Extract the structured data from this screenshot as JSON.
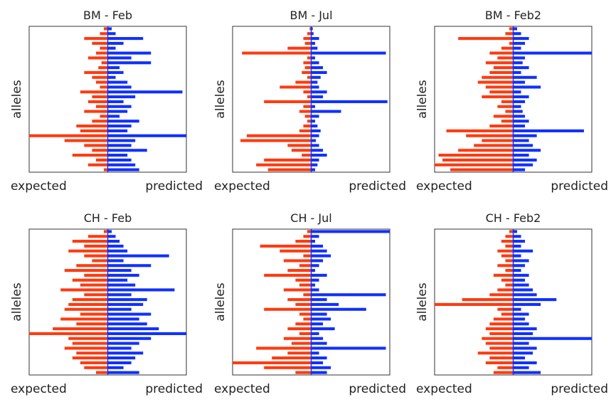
{
  "chart_data": [
    {
      "type": "bar",
      "title": "BM - Feb",
      "ylabel": "alleles",
      "xlim": [
        -1,
        1
      ],
      "series": [
        {
          "name": "expected",
          "color": "#ff3a10",
          "values": [
            -0.05,
            -0.1,
            -0.3,
            -0.2,
            -0.1,
            -0.15,
            -0.25,
            -0.08,
            -0.12,
            -0.3,
            -0.2,
            -0.15,
            -0.1,
            -0.35,
            -0.2,
            -0.25,
            -0.15,
            -0.3,
            -0.1,
            -0.2,
            -0.4,
            -0.35,
            -1.0,
            -0.55,
            -0.3,
            -0.2,
            -0.45,
            -0.15,
            -0.25,
            -0.05
          ]
        },
        {
          "name": "predicted",
          "color": "#1030ff",
          "values": [
            0.05,
            0.1,
            0.45,
            0.2,
            0.1,
            0.55,
            0.3,
            0.55,
            0.15,
            0.2,
            0.1,
            0.25,
            0.3,
            0.95,
            0.35,
            0.2,
            0.3,
            0.25,
            0.15,
            0.4,
            0.3,
            0.25,
            1.0,
            0.35,
            0.3,
            0.5,
            0.25,
            0.3,
            0.35,
            0.4
          ]
        }
      ]
    },
    {
      "type": "bar",
      "title": "BM - Jul",
      "ylabel": "alleles",
      "xlim": [
        -1,
        1
      ],
      "series": [
        {
          "name": "expected",
          "color": "#ff3a10",
          "values": [
            -0.02,
            -0.05,
            -0.1,
            -0.08,
            -0.3,
            -0.88,
            -0.05,
            -0.1,
            -0.08,
            -0.12,
            -0.05,
            -0.2,
            -0.4,
            -0.1,
            -0.05,
            -0.6,
            -0.1,
            -0.15,
            -0.08,
            -0.05,
            -0.1,
            -0.15,
            -0.82,
            -0.9,
            -0.3,
            -0.25,
            -0.12,
            -0.6,
            -0.7,
            -0.55
          ]
        },
        {
          "name": "predicted",
          "color": "#1030ff",
          "values": [
            0.02,
            0.03,
            0.1,
            0.05,
            0.08,
            0.95,
            0.05,
            0.1,
            0.15,
            0.2,
            0.12,
            0.08,
            0.1,
            0.2,
            0.15,
            0.97,
            0.05,
            0.38,
            0.1,
            0.05,
            0.08,
            0.12,
            0.1,
            0.06,
            0.1,
            0.15,
            0.2,
            0.1,
            0.08,
            0.05
          ]
        }
      ]
    },
    {
      "type": "bar",
      "title": "BM - Feb2",
      "ylabel": "alleles",
      "xlim": [
        -1,
        1
      ],
      "series": [
        {
          "name": "expected",
          "color": "#ff3a10",
          "values": [
            -0.05,
            -0.1,
            -0.7,
            -0.05,
            -0.15,
            -0.3,
            -0.2,
            -0.35,
            -0.25,
            -0.3,
            -0.4,
            -0.45,
            -0.35,
            -0.3,
            -0.4,
            -0.15,
            -0.2,
            -0.1,
            -0.25,
            -0.15,
            -0.3,
            -0.85,
            -0.6,
            -0.4,
            -0.5,
            -0.7,
            -0.95,
            -0.9,
            -1.0,
            -0.8
          ]
        },
        {
          "name": "predicted",
          "color": "#1030ff",
          "values": [
            0.05,
            0.1,
            0.2,
            0.15,
            0.1,
            1.0,
            0.15,
            0.12,
            0.2,
            0.1,
            0.3,
            0.15,
            0.35,
            0.1,
            0.2,
            0.15,
            0.1,
            0.12,
            0.15,
            0.2,
            0.15,
            0.9,
            0.3,
            0.2,
            0.25,
            0.35,
            0.2,
            0.3,
            0.25,
            0.15
          ]
        }
      ]
    },
    {
      "type": "bar",
      "title": "CH - Feb",
      "ylabel": "alleles",
      "xlim": [
        -1,
        1
      ],
      "series": [
        {
          "name": "expected",
          "color": "#ff3a10",
          "values": [
            -0.05,
            -0.25,
            -0.45,
            -0.3,
            -0.5,
            -0.3,
            -0.2,
            -0.4,
            -0.55,
            -0.3,
            -0.45,
            -0.35,
            -0.6,
            -0.3,
            -0.45,
            -0.5,
            -0.55,
            -0.35,
            -0.6,
            -0.4,
            -0.7,
            -1.0,
            -0.5,
            -0.45,
            -0.55,
            -0.4,
            -0.45,
            -0.35,
            -0.3,
            -0.15
          ]
        },
        {
          "name": "predicted",
          "color": "#1030ff",
          "values": [
            0.05,
            0.1,
            0.15,
            0.2,
            0.25,
            0.78,
            0.2,
            0.55,
            0.3,
            0.4,
            0.25,
            0.35,
            0.85,
            0.3,
            0.5,
            0.45,
            0.3,
            0.55,
            0.4,
            0.5,
            0.65,
            1.0,
            0.55,
            0.4,
            0.3,
            0.45,
            0.35,
            0.3,
            0.2,
            0.4
          ]
        }
      ]
    },
    {
      "type": "bar",
      "title": "CH - Jul",
      "ylabel": "alleles",
      "xlim": [
        -1,
        1
      ],
      "series": [
        {
          "name": "expected",
          "color": "#ff3a10",
          "values": [
            -0.05,
            -0.1,
            -0.2,
            -0.65,
            -0.4,
            -0.1,
            -0.35,
            -0.15,
            -0.3,
            -0.6,
            -0.2,
            -0.15,
            -0.35,
            -0.1,
            -0.3,
            -0.2,
            -0.6,
            -0.15,
            -0.1,
            -0.2,
            -0.3,
            -0.15,
            -0.35,
            -0.25,
            -0.7,
            -0.3,
            -0.5,
            -1.0,
            -0.6,
            -0.2
          ]
        },
        {
          "name": "predicted",
          "color": "#1030ff",
          "values": [
            1.0,
            0.1,
            0.05,
            0.15,
            0.2,
            0.25,
            0.15,
            0.1,
            0.05,
            0.2,
            0.1,
            0.05,
            0.1,
            0.95,
            0.2,
            0.35,
            0.7,
            0.2,
            0.25,
            0.15,
            0.3,
            0.1,
            0.15,
            0.2,
            0.95,
            0.1,
            0.2,
            0.15,
            0.25,
            0.2
          ]
        }
      ]
    },
    {
      "type": "bar",
      "title": "CH - Feb2",
      "ylabel": "alleles",
      "xlim": [
        -1,
        1
      ],
      "series": [
        {
          "name": "expected",
          "color": "#ff3a10",
          "values": [
            -0.05,
            -0.1,
            -0.15,
            -0.1,
            -0.2,
            -0.15,
            -0.1,
            -0.2,
            -0.1,
            -0.25,
            -0.15,
            -0.1,
            -0.2,
            -0.3,
            -0.65,
            -1.0,
            -0.2,
            -0.15,
            -0.25,
            -0.3,
            -0.35,
            -0.3,
            -0.4,
            -0.35,
            -0.3,
            -0.45,
            -0.3,
            -0.35,
            -0.2,
            -0.25
          ]
        },
        {
          "name": "predicted",
          "color": "#1030ff",
          "values": [
            0.05,
            0.1,
            0.15,
            0.1,
            0.25,
            0.1,
            0.2,
            0.15,
            0.1,
            0.2,
            0.15,
            0.2,
            0.25,
            0.3,
            0.55,
            0.35,
            0.1,
            0.2,
            0.15,
            0.2,
            0.3,
            0.25,
            1.0,
            0.2,
            0.3,
            0.25,
            0.15,
            0.3,
            0.2,
            0.35
          ]
        }
      ]
    }
  ]
}
